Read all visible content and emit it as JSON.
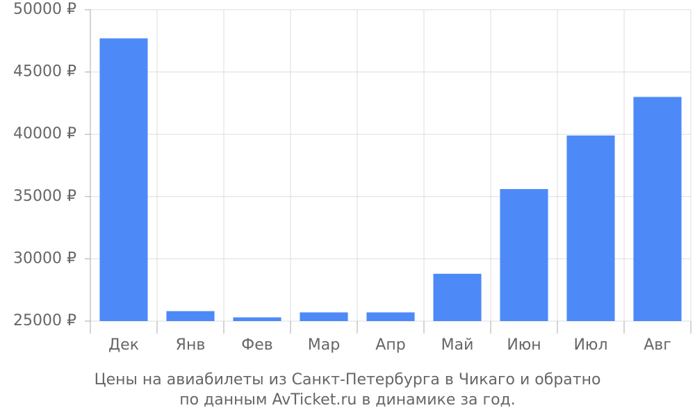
{
  "chart_data": {
    "type": "bar",
    "title": [
      "Цены на авиабилеты из Санкт-Петербурга в Чикаго и обратно",
      "по данным AvTicket.ru в динамике за год."
    ],
    "categories": [
      "Дек",
      "Янв",
      "Фев",
      "Мар",
      "Апр",
      "Май",
      "Июн",
      "Июл",
      "Авг"
    ],
    "values": [
      47700,
      25800,
      25300,
      25700,
      25700,
      28800,
      35600,
      39900,
      43000
    ],
    "color": "#4d8af8",
    "ylim": [
      25000,
      50000
    ],
    "yticks": [
      {
        "value": 25000,
        "label": "25000 ₽"
      },
      {
        "value": 30000,
        "label": "30000 ₽"
      },
      {
        "value": 35000,
        "label": "35000 ₽"
      },
      {
        "value": 40000,
        "label": "40000 ₽"
      },
      {
        "value": 45000,
        "label": "45000 ₽"
      },
      {
        "value": 50000,
        "label": "50000 ₽"
      }
    ],
    "grid": true
  }
}
